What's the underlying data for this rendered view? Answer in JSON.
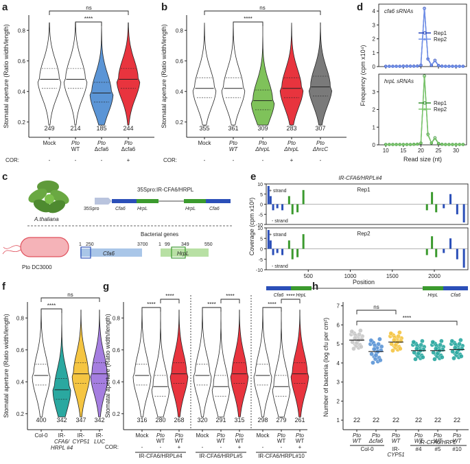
{
  "panels": {
    "a": {
      "label": "a",
      "ylabel": "Stomatal aperture (Ratio width/length)",
      "ticks": [
        "0.8",
        "0.6",
        "0.4",
        "0.2"
      ],
      "cats": [
        {
          "l1": "Mock",
          "l2": "",
          "cor": "-",
          "n": "249",
          "color": "#ffffff",
          "med": 0.48
        },
        {
          "l1": "Pto",
          "l2": "WT",
          "cor": "-",
          "n": "214",
          "color": "#ffffff",
          "med": 0.48
        },
        {
          "l1": "Pto",
          "l2": "Δcfa6",
          "cor": "-",
          "n": "185",
          "color": "#5b95d6",
          "med": 0.39
        },
        {
          "l1": "Pto",
          "l2": "Δcfa6",
          "cor": "+",
          "n": "244",
          "color": "#e8343e",
          "med": 0.48
        }
      ],
      "sig": [
        "ns",
        "****"
      ],
      "cor_label": "COR:"
    },
    "b": {
      "label": "b",
      "ylabel": "Stomatal aperture (Ratio width/length)",
      "ticks": [
        "0.8",
        "0.6",
        "0.4",
        "0.2"
      ],
      "cats": [
        {
          "l1": "Mock",
          "l2": "",
          "cor": "-",
          "n": "355",
          "color": "#ffffff",
          "med": 0.42
        },
        {
          "l1": "Pto",
          "l2": "WT",
          "cor": "-",
          "n": "361",
          "color": "#ffffff",
          "med": 0.42
        },
        {
          "l1": "Pto",
          "l2": "ΔhrpL",
          "cor": "-",
          "n": "309",
          "color": "#7fc25a",
          "med": 0.34
        },
        {
          "l1": "Pto",
          "l2": "ΔhrpL",
          "cor": "+",
          "n": "283",
          "color": "#e8343e",
          "med": 0.42
        },
        {
          "l1": "Pto",
          "l2": "ΔhrcC",
          "cor": "-",
          "n": "307",
          "color": "#7a7a7a",
          "med": 0.43
        }
      ],
      "sig": [
        "ns",
        "****"
      ],
      "cor_label": "COR:"
    },
    "d": {
      "label": "d",
      "ylabel": "Frequency (cpm x10⁴)",
      "xlabel": "Read size (nt)",
      "xticks": [
        "10",
        "15",
        "20",
        "25",
        "30"
      ],
      "top": {
        "title": "cfa6 sRNAs",
        "yticks": [
          "0",
          "1",
          "2",
          "3",
          "4"
        ],
        "legend": [
          "Rep1",
          "Rep2"
        ]
      },
      "bottom": {
        "title": "hrpL sRNAs",
        "yticks": [
          "0",
          "1",
          "2",
          "3"
        ],
        "legend": [
          "Rep1",
          "Rep2"
        ]
      }
    },
    "c": {
      "label": "c",
      "plant": "A.thaliana",
      "construct": "35Spro:IR-CFA6/HRPL",
      "promoter": "35Spro",
      "genes": [
        "Cfa6",
        "HrpL",
        "HrpL",
        "Cfa6"
      ],
      "bacteria_title": "Bacterial genes",
      "strain": "Pto DC3000",
      "cfa6_coords": [
        "1",
        "250",
        "3700"
      ],
      "hrpl_coords": [
        "1",
        "99",
        "349",
        "550"
      ],
      "cfa6_name": "Cfa6",
      "hrpl_name": "HrpL"
    },
    "e": {
      "label": "e",
      "title": "IR-CFA6/HRPL#4",
      "ylabel": "Coverage (cpm x10²)",
      "xlabel": "Position",
      "yticks": [
        "10",
        "5",
        "0",
        "-5",
        "-10"
      ],
      "xticks": [
        "500",
        "1000",
        "1500",
        "2000"
      ],
      "rep1": "Rep1",
      "rep2": "Rep2",
      "plus": "+ strand",
      "minus": "- strand",
      "genes": [
        "Cfa6",
        "HrpL",
        "HrpL",
        "Cfa6"
      ]
    },
    "f": {
      "label": "f",
      "ylabel": "Stomatal aperture (Ratio width/length)",
      "ticks": [
        "0.8",
        "0.6",
        "0.4",
        "0.2"
      ],
      "cats": [
        {
          "l1": "Col-0",
          "l2": "",
          "l3": "",
          "n": "400",
          "color": "#ffffff",
          "med": 0.44
        },
        {
          "l1": "IR-",
          "l2": "CFA6/",
          "l3": "HRPL #4",
          "n": "342",
          "color": "#2aa8a0",
          "med": 0.35
        },
        {
          "l1": "IR-",
          "l2": "CYP51",
          "l3": "",
          "n": "347",
          "color": "#f5c542",
          "med": 0.45
        },
        {
          "l1": "IR-",
          "l2": "LUC",
          "l3": "",
          "n": "342",
          "color": "#a57ee0",
          "med": 0.45
        }
      ],
      "sig": [
        "ns",
        "****"
      ]
    },
    "g": {
      "label": "g",
      "ylabel": "Stomatal aperture (Ratio width/length)",
      "ticks": [
        "0.8",
        "0.6",
        "0.4",
        "0.2"
      ],
      "groups": [
        {
          "name": "IR-CFA6/HRPL#4",
          "ns": [
            "316",
            "280",
            "268"
          ]
        },
        {
          "name": "IR-CFA6/HRPL#5",
          "ns": [
            "320",
            "291",
            "315"
          ]
        },
        {
          "name": "IR-CFA6/HRPL#10",
          "ns": [
            "298",
            "279",
            "261"
          ]
        }
      ],
      "cat_labels": [
        {
          "l1": "Mock",
          "l2": "",
          "cor": "-",
          "color": "#ffffff",
          "med": 0.44
        },
        {
          "l1": "Pto",
          "l2": "WT",
          "cor": "-",
          "color": "#ffffff",
          "med": 0.37
        },
        {
          "l1": "Pto",
          "l2": "WT",
          "cor": "+",
          "color": "#e8343e",
          "med": 0.45
        }
      ],
      "sig": "****",
      "cor_label": "COR:"
    },
    "h": {
      "label": "h",
      "ylabel": "Number of bacteria (log cfu per cm²)",
      "ticks": [
        "7",
        "6",
        "5",
        "4",
        "3",
        "2",
        "1"
      ],
      "cats": [
        {
          "l1": "Pto",
          "l2": "WT",
          "n": "22",
          "color": "#c8c8c8",
          "mean": 5.2
        },
        {
          "l1": "Pto",
          "l2": "Δcfa6",
          "n": "22",
          "color": "#5b95d6",
          "mean": 4.6
        },
        {
          "l1": "Pto",
          "l2": "WT",
          "n": "22",
          "color": "#f5c542",
          "mean": 5.1
        },
        {
          "l1": "Pto",
          "l2": "WT",
          "n": "22",
          "color": "#2aa8a0",
          "mean": 4.65
        },
        {
          "l1": "Pto",
          "l2": "WT",
          "n": "22",
          "color": "#2aa8a0",
          "mean": 4.65
        },
        {
          "l1": "Pto",
          "l2": "WT",
          "n": "22",
          "color": "#2aa8a0",
          "mean": 4.7
        }
      ],
      "groups": [
        "Col-0",
        "IR-",
        "CYP51",
        "IR-CFA6/HRPL",
        "#4",
        "#5",
        "#10"
      ],
      "sig": [
        "ns",
        "****"
      ]
    }
  },
  "chart_data": [
    {
      "type": "violin",
      "panel": "a",
      "ylabel": "Stomatal aperture (Ratio width/length)",
      "ylim": [
        0.1,
        0.9
      ],
      "categories": [
        "Mock",
        "Pto WT",
        "Pto Δcfa6",
        "Pto Δcfa6 + COR"
      ],
      "medians": [
        0.48,
        0.48,
        0.39,
        0.48
      ],
      "n": [
        249,
        214,
        185,
        244
      ]
    },
    {
      "type": "violin",
      "panel": "b",
      "ylabel": "Stomatal aperture (Ratio width/length)",
      "ylim": [
        0.1,
        0.9
      ],
      "categories": [
        "Mock",
        "Pto WT",
        "Pto ΔhrpL",
        "Pto ΔhrpL + COR",
        "Pto ΔhrcC"
      ],
      "medians": [
        0.42,
        0.42,
        0.34,
        0.42,
        0.43
      ],
      "n": [
        355,
        361,
        309,
        283,
        307
      ]
    },
    {
      "type": "line",
      "panel": "d-top",
      "title": "cfa6 sRNAs",
      "x": [
        10,
        11,
        12,
        13,
        14,
        15,
        16,
        17,
        18,
        19,
        20,
        21,
        22,
        23,
        24,
        25,
        26,
        27,
        28,
        29,
        30,
        31,
        32
      ],
      "series": [
        {
          "name": "Rep1",
          "values": [
            0.02,
            0.02,
            0.02,
            0.02,
            0.02,
            0.03,
            0.03,
            0.03,
            0.03,
            0.04,
            0.1,
            4.2,
            0.55,
            0.1,
            0.45,
            0.08,
            0.03,
            0.02,
            0.02,
            0.02,
            0.02,
            0.02,
            0.02
          ]
        },
        {
          "name": "Rep2",
          "values": [
            0.02,
            0.02,
            0.02,
            0.02,
            0.02,
            0.03,
            0.03,
            0.03,
            0.03,
            0.04,
            0.1,
            4.15,
            0.6,
            0.12,
            0.4,
            0.08,
            0.03,
            0.02,
            0.02,
            0.02,
            0.02,
            0.02,
            0.02
          ]
        }
      ],
      "ylim": [
        0,
        4.5
      ]
    },
    {
      "type": "line",
      "panel": "d-bottom",
      "title": "hrpL sRNAs",
      "x": [
        10,
        11,
        12,
        13,
        14,
        15,
        16,
        17,
        18,
        19,
        20,
        21,
        22,
        23,
        24,
        25,
        26,
        27,
        28,
        29,
        30,
        31,
        32
      ],
      "series": [
        {
          "name": "Rep1",
          "values": [
            0.02,
            0.02,
            0.02,
            0.02,
            0.02,
            0.02,
            0.02,
            0.02,
            0.03,
            0.04,
            0.1,
            3.9,
            0.6,
            0.1,
            0.4,
            0.08,
            0.03,
            0.02,
            0.02,
            0.02,
            0.02,
            0.02,
            0.02
          ]
        },
        {
          "name": "Rep2",
          "values": [
            0.02,
            0.02,
            0.02,
            0.02,
            0.02,
            0.02,
            0.02,
            0.02,
            0.03,
            0.04,
            0.1,
            3.85,
            0.55,
            0.1,
            0.35,
            0.08,
            0.03,
            0.02,
            0.02,
            0.02,
            0.02,
            0.02,
            0.02
          ]
        }
      ],
      "ylim": [
        0,
        4
      ]
    },
    {
      "type": "violin",
      "panel": "f",
      "ylabel": "Stomatal aperture (Ratio width/length)",
      "ylim": [
        0.1,
        0.9
      ],
      "categories": [
        "Col-0",
        "IR-CFA6/HRPL #4",
        "IR-CYP51",
        "IR-LUC"
      ],
      "medians": [
        0.44,
        0.35,
        0.45,
        0.45
      ],
      "n": [
        400,
        342,
        347,
        342
      ]
    },
    {
      "type": "violin",
      "panel": "g",
      "ylabel": "Stomatal aperture (Ratio width/length)",
      "ylim": [
        0.1,
        0.9
      ],
      "groups": [
        "IR-CFA6/HRPL#4",
        "IR-CFA6/HRPL#5",
        "IR-CFA6/HRPL#10"
      ],
      "categories": [
        "Mock",
        "Pto WT",
        "Pto WT + COR"
      ],
      "medians": [
        0.44,
        0.37,
        0.45
      ],
      "n": [
        [
          316,
          280,
          268
        ],
        [
          320,
          291,
          315
        ],
        [
          298,
          279,
          261
        ]
      ]
    },
    {
      "type": "scatter",
      "panel": "h",
      "ylabel": "Number of bacteria (log cfu per cm²)",
      "ylim": [
        1,
        7
      ],
      "categories": [
        "Col-0 Pto WT",
        "Col-0 Pto Δcfa6",
        "IR-CYP51 Pto WT",
        "IR-CFA6/HRPL #4 Pto WT",
        "IR-CFA6/HRPL #5 Pto WT",
        "IR-CFA6/HRPL #10 Pto WT"
      ],
      "means": [
        5.2,
        4.6,
        5.1,
        4.65,
        4.65,
        4.7
      ],
      "n": [
        22,
        22,
        22,
        22,
        22,
        22
      ]
    }
  ]
}
